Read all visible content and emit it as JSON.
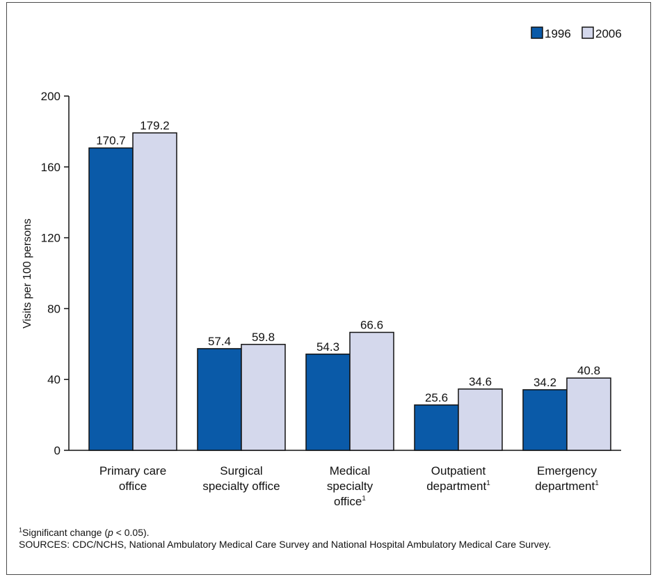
{
  "colors": {
    "series_1996": "#0a5aa8",
    "series_2006": "#d4d8ec",
    "outline": "#111111"
  },
  "legend": {
    "items": [
      "1996",
      "2006"
    ]
  },
  "footnotes": {
    "note_mark": "1",
    "note_text": "Significant change (",
    "note_p": "p",
    "note_rest": " < 0.05).",
    "sources": "SOURCES: CDC/NCHS, National Ambulatory Medical Care Survey and National Hospital Ambulatory Medical Care Survey."
  },
  "chart_data": {
    "type": "bar",
    "title": "",
    "xlabel": "",
    "ylabel": "Visits per 100 persons",
    "ylim": [
      0,
      200
    ],
    "yticks": [
      0,
      40,
      80,
      120,
      160,
      200
    ],
    "categories": [
      [
        "Primary care",
        "office"
      ],
      [
        "Surgical",
        "specialty office"
      ],
      [
        "Medical",
        "specialty",
        "office¹"
      ],
      [
        "Outpatient",
        "department¹"
      ],
      [
        "Emergency",
        "department¹"
      ]
    ],
    "series": [
      {
        "name": "1996",
        "values": [
          170.7,
          57.4,
          54.3,
          25.6,
          34.2
        ],
        "labels": [
          "170.7",
          "57.4",
          "54.3",
          "25.6",
          "34.2"
        ]
      },
      {
        "name": "2006",
        "values": [
          179.2,
          59.8,
          66.6,
          34.6,
          40.8
        ],
        "labels": [
          "179.2",
          "59.8",
          "66.6",
          "34.6",
          "40.8"
        ]
      }
    ],
    "legend_position": "top-right",
    "grid": false
  }
}
